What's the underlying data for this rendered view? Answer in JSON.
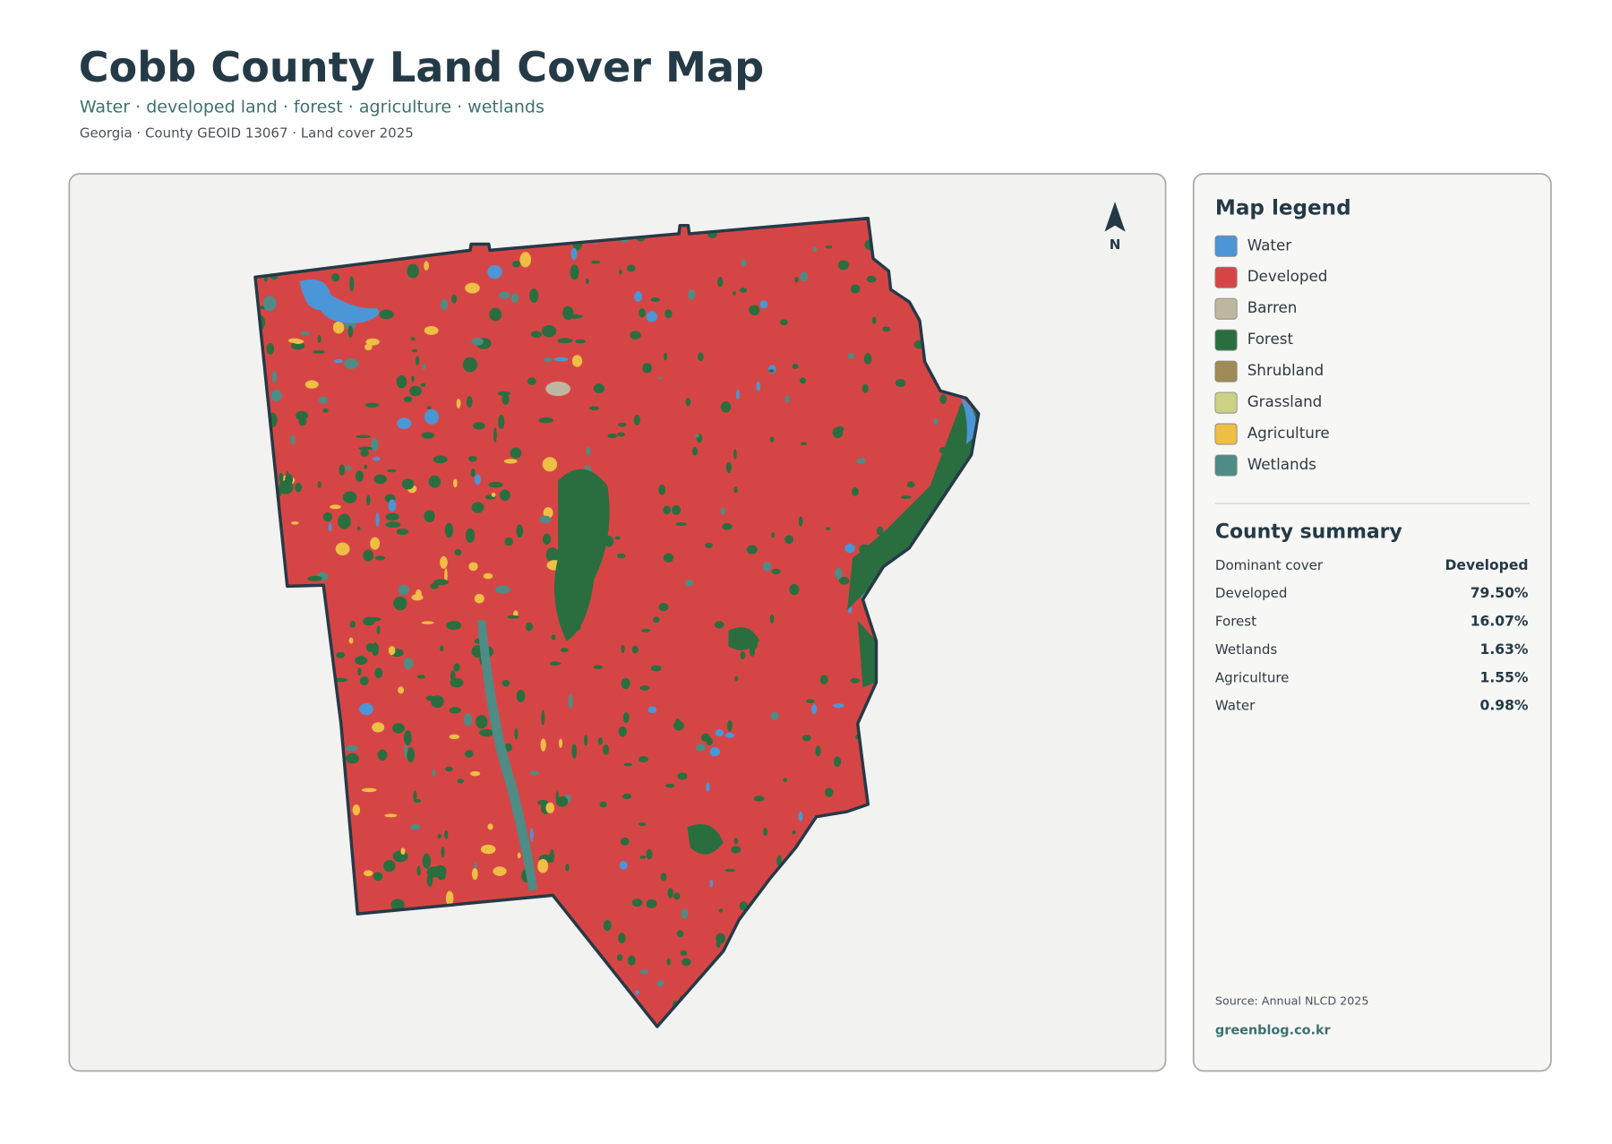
{
  "header": {
    "title": "Cobb County Land Cover Map",
    "subtitle": "Water · developed land · forest · agriculture · wetlands",
    "meta": "Georgia · County GEOID 13067 · Land cover 2025"
  },
  "map": {
    "north_label": "N"
  },
  "legend": {
    "title": "Map legend",
    "items": [
      {
        "label": "Water",
        "color": "#4b96d6"
      },
      {
        "label": "Developed",
        "color": "#d64545"
      },
      {
        "label": "Barren",
        "color": "#bfb6a0"
      },
      {
        "label": "Forest",
        "color": "#2a6e3f"
      },
      {
        "label": "Shrubland",
        "color": "#a08a55"
      },
      {
        "label": "Grassland",
        "color": "#cdd186"
      },
      {
        "label": "Agriculture",
        "color": "#eebe45"
      },
      {
        "label": "Wetlands",
        "color": "#4e8c85"
      }
    ]
  },
  "summary": {
    "title": "County summary",
    "rows": [
      [
        "Dominant cover",
        "Developed"
      ],
      [
        "Developed",
        "79.50%"
      ],
      [
        "Forest",
        "16.07%"
      ],
      [
        "Wetlands",
        "1.63%"
      ],
      [
        "Agriculture",
        "1.55%"
      ],
      [
        "Water",
        "0.98%"
      ]
    ]
  },
  "footer": {
    "source": "Source: Annual NLCD 2025",
    "site": "greenblog.co.kr"
  }
}
